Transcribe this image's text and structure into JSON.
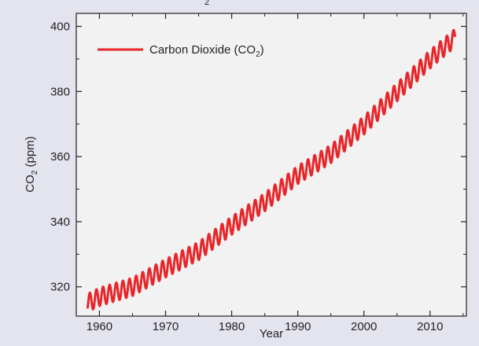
{
  "colors": {
    "page_background": "#e4e4ee",
    "plot_background": "#f2f2f2",
    "series": "#e8262a",
    "axis": "#222222"
  },
  "top_fragment": "2",
  "chart_data": {
    "type": "line",
    "xlabel": "Year",
    "ylabel_main": "CO",
    "ylabel_sub": "2",
    "ylabel_unit": " (ppm)",
    "xlim": [
      1956.5,
      2015.5
    ],
    "ylim": [
      311,
      404
    ],
    "x_ticks": [
      1960,
      1970,
      1980,
      1990,
      2000,
      2010
    ],
    "y_ticks": [
      320,
      340,
      360,
      380,
      400
    ],
    "grid": false,
    "legend_position": "top-left",
    "series": [
      {
        "name_main": "Carbon Dioxide (CO",
        "name_sub": "2",
        "name_end": ")",
        "trend_x": [
          1958.2,
          1960,
          1965,
          1970,
          1975,
          1980,
          1985,
          1990,
          1995,
          2000,
          2005,
          2010,
          2013.8
        ],
        "trend_y": [
          315.0,
          316.9,
          320.0,
          325.7,
          331.0,
          338.8,
          346.0,
          354.4,
          360.8,
          369.6,
          379.8,
          389.9,
          396.5
        ],
        "seasonal_amplitude_ppm": 2.8
      }
    ]
  }
}
